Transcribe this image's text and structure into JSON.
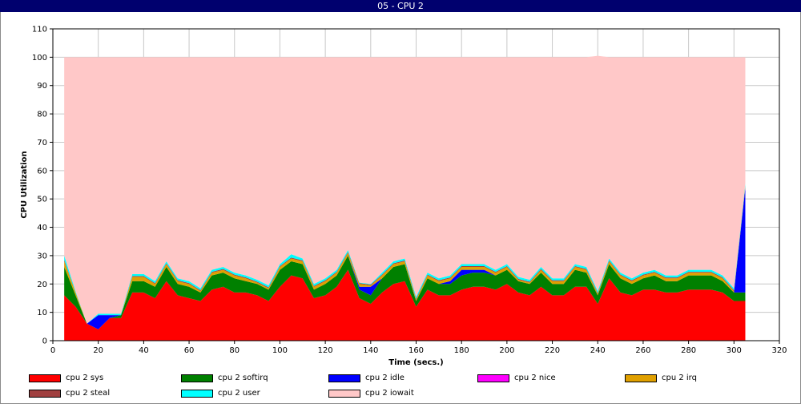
{
  "window": {
    "title": "05 - CPU 2"
  },
  "chart_data": {
    "type": "area",
    "stacked": true,
    "title": "05 - CPU 2",
    "xlabel": "Time (secs.)",
    "ylabel": "CPU Utilization",
    "xlim": [
      0,
      320
    ],
    "ylim": [
      0,
      110
    ],
    "xticks": [
      0,
      20,
      40,
      60,
      80,
      100,
      120,
      140,
      160,
      180,
      200,
      220,
      240,
      260,
      280,
      300,
      320
    ],
    "yticks": [
      0,
      10,
      20,
      30,
      40,
      50,
      60,
      70,
      80,
      90,
      100,
      110
    ],
    "grid": true,
    "legend_position": "bottom",
    "x": [
      5,
      10,
      15,
      20,
      25,
      30,
      35,
      40,
      45,
      50,
      55,
      60,
      65,
      70,
      75,
      80,
      85,
      90,
      95,
      100,
      105,
      110,
      115,
      120,
      125,
      130,
      135,
      140,
      145,
      150,
      155,
      160,
      165,
      170,
      175,
      180,
      185,
      190,
      195,
      200,
      205,
      210,
      215,
      220,
      225,
      230,
      235,
      240,
      245,
      250,
      255,
      260,
      265,
      270,
      275,
      280,
      285,
      290,
      295,
      300,
      305
    ],
    "series": [
      {
        "name": "cpu 2 sys",
        "color": "#ff0000",
        "values": [
          16,
          12,
          6,
          4,
          8,
          8,
          17,
          17,
          15,
          21,
          16,
          15,
          14,
          18,
          19,
          17,
          17,
          16,
          14,
          19,
          23,
          22,
          15,
          16,
          19,
          25,
          15,
          13,
          17,
          20,
          21,
          12,
          18,
          16,
          16,
          18,
          19,
          19,
          18,
          20,
          17,
          16,
          19,
          16,
          16,
          19,
          19,
          13,
          22,
          17,
          16,
          18,
          18,
          17,
          17,
          18,
          18,
          18,
          17,
          14,
          14
        ]
      },
      {
        "name": "cpu 2 softirq",
        "color": "#008000",
        "values": [
          10,
          4,
          0,
          0,
          0,
          1,
          4,
          4,
          4,
          5,
          4,
          4,
          3,
          5,
          5,
          5,
          4,
          4,
          4,
          6,
          5,
          5,
          3,
          4,
          4,
          5,
          3,
          3,
          5,
          6,
          6,
          2,
          4,
          4,
          4,
          5,
          5,
          5,
          5,
          5,
          4,
          4,
          5,
          4,
          4,
          6,
          5,
          3,
          5,
          5,
          4,
          4,
          5,
          4,
          4,
          5,
          5,
          5,
          4,
          3,
          3
        ]
      },
      {
        "name": "cpu 2 idle",
        "color": "#0000ff",
        "values": [
          0,
          0,
          0,
          5,
          1,
          0,
          0,
          0,
          0,
          0,
          0,
          0,
          0,
          0,
          0,
          0,
          0,
          0,
          0,
          0,
          0,
          0,
          0,
          0,
          0,
          0,
          1,
          3,
          0,
          0,
          0,
          0,
          0,
          0,
          1,
          2,
          1,
          1,
          0,
          0,
          0,
          0,
          0,
          0,
          0,
          0,
          0,
          0,
          0,
          0,
          0,
          0,
          0,
          0,
          0,
          0,
          0,
          0,
          0,
          0,
          37
        ]
      },
      {
        "name": "cpu 2 nice",
        "color": "#ff00ff",
        "values": [
          0,
          0,
          0,
          0,
          0,
          0,
          0,
          0,
          0,
          0,
          0,
          0,
          0,
          0,
          0,
          0,
          0,
          0,
          0,
          0,
          0,
          0,
          0,
          0,
          0,
          0,
          0,
          0,
          0,
          0,
          0,
          0,
          0,
          0,
          0,
          0,
          0,
          0,
          0,
          0,
          0,
          0,
          0,
          0,
          0,
          0,
          0,
          0,
          0,
          0,
          0,
          0,
          0,
          0,
          0,
          0,
          0,
          0,
          0,
          0,
          0
        ]
      },
      {
        "name": "cpu 2 irq",
        "color": "#e0a000",
        "values": [
          2,
          1,
          0,
          0,
          0,
          0,
          1.5,
          1.5,
          1,
          1,
          1,
          1,
          0.5,
          1,
          1,
          1,
          1,
          0.5,
          0.5,
          1,
          1,
          1,
          1,
          1,
          1,
          1,
          1,
          0.5,
          1,
          1,
          1,
          0.5,
          1,
          1,
          1,
          1,
          1,
          1,
          1,
          1,
          0.5,
          0.5,
          1,
          1,
          1,
          1,
          1,
          0.5,
          1,
          1,
          1,
          1,
          1,
          1,
          1,
          1,
          1,
          1,
          1,
          0.5,
          0.5
        ]
      },
      {
        "name": "cpu 2 steal",
        "color": "#a04040",
        "values": [
          0.5,
          0,
          0,
          0,
          0,
          0,
          0.3,
          0.3,
          0.3,
          0.3,
          0.3,
          0.3,
          0.3,
          0.3,
          0.3,
          0.3,
          0.3,
          0.3,
          0.3,
          0.3,
          0.3,
          0.3,
          0.3,
          0.3,
          0.3,
          0.3,
          0.3,
          0.3,
          0.3,
          0.3,
          0.3,
          0.3,
          0.3,
          0.3,
          0.3,
          0.3,
          0.3,
          0.3,
          0.3,
          0.3,
          0.3,
          0.3,
          0.3,
          0.3,
          0.3,
          0.3,
          0.3,
          0.3,
          0.3,
          0.3,
          0.3,
          0.3,
          0.3,
          0.3,
          0.3,
          0.3,
          0.3,
          0.3,
          0.3,
          0.3,
          0.3
        ]
      },
      {
        "name": "cpu 2 user",
        "color": "#00ffff",
        "values": [
          1.5,
          0.5,
          0,
          0.5,
          0.5,
          0.5,
          0.7,
          0.7,
          0.7,
          0.7,
          0.7,
          0.7,
          0.7,
          0.7,
          0.7,
          0.7,
          0.7,
          0.7,
          0.7,
          0.7,
          1.2,
          0.7,
          0.7,
          0.7,
          0.7,
          0.7,
          0.2,
          0.2,
          0.7,
          0.7,
          0.7,
          0.7,
          0.7,
          0.7,
          0.7,
          0.7,
          0.7,
          0.7,
          0.7,
          0.7,
          0.7,
          0.7,
          0.7,
          0.7,
          0.7,
          0.7,
          0.7,
          0.7,
          0.7,
          0.7,
          0.7,
          0.7,
          0.7,
          0.7,
          0.7,
          0.7,
          0.7,
          0.7,
          0.7,
          0.7,
          0.7
        ]
      },
      {
        "name": "cpu 2 iowait",
        "color": "#ffc8c8",
        "values": [
          70,
          82.5,
          94,
          90.5,
          90.5,
          90.5,
          76.5,
          76.5,
          79,
          72,
          78,
          79,
          81.5,
          75,
          74,
          76,
          77,
          78.5,
          80.5,
          73,
          69.5,
          71,
          80,
          78,
          75,
          68,
          79.5,
          80,
          76,
          72,
          71,
          84.5,
          76,
          78,
          77,
          73,
          73,
          73,
          75,
          73,
          77.5,
          78.5,
          74,
          78,
          78,
          73,
          74,
          83,
          71,
          76,
          78,
          76,
          75,
          77,
          77,
          75,
          75,
          75,
          77,
          81.5,
          44.5
        ]
      }
    ]
  }
}
